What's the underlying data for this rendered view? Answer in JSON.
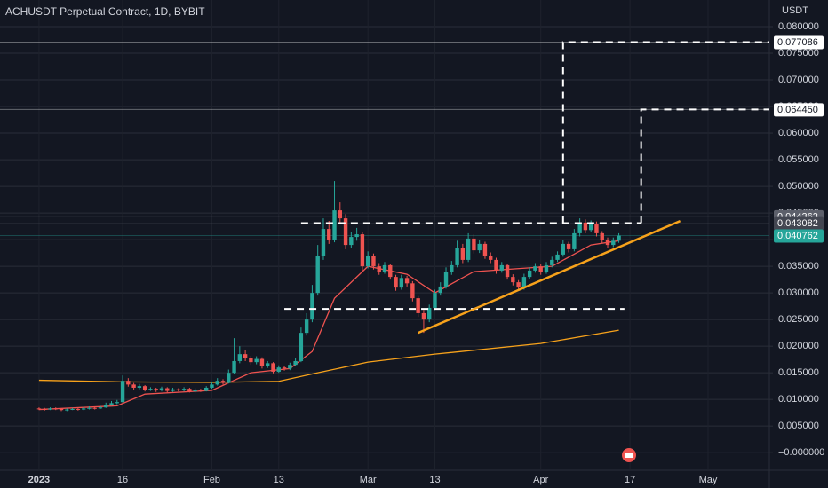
{
  "chart_data": {
    "type": "candlestick",
    "title": "ACHUSDT Perpetual Contract, 1D, BYBIT",
    "y_axis_label": "USDT",
    "up_color": "#26a69a",
    "down_color": "#ef5350",
    "grid": true,
    "x": [
      "2023-01-01",
      "2023-01-02",
      "2023-01-03",
      "2023-01-04",
      "2023-01-05",
      "2023-01-06",
      "2023-01-07",
      "2023-01-08",
      "2023-01-09",
      "2023-01-10",
      "2023-01-11",
      "2023-01-12",
      "2023-01-13",
      "2023-01-14",
      "2023-01-15",
      "2023-01-16",
      "2023-01-17",
      "2023-01-18",
      "2023-01-19",
      "2023-01-20",
      "2023-01-21",
      "2023-01-22",
      "2023-01-23",
      "2023-01-24",
      "2023-01-25",
      "2023-01-26",
      "2023-01-27",
      "2023-01-28",
      "2023-01-29",
      "2023-01-30",
      "2023-01-31",
      "2023-02-01",
      "2023-02-02",
      "2023-02-03",
      "2023-02-04",
      "2023-02-05",
      "2023-02-06",
      "2023-02-07",
      "2023-02-08",
      "2023-02-09",
      "2023-02-10",
      "2023-02-11",
      "2023-02-12",
      "2023-02-13",
      "2023-02-14",
      "2023-02-15",
      "2023-02-16",
      "2023-02-17",
      "2023-02-18",
      "2023-02-19",
      "2023-02-20",
      "2023-02-21",
      "2023-02-22",
      "2023-02-23",
      "2023-02-24",
      "2023-02-25",
      "2023-02-26",
      "2023-02-27",
      "2023-02-28",
      "2023-03-01",
      "2023-03-02",
      "2023-03-03",
      "2023-03-04",
      "2023-03-05",
      "2023-03-06",
      "2023-03-07",
      "2023-03-08",
      "2023-03-09",
      "2023-03-10",
      "2023-03-11",
      "2023-03-12",
      "2023-03-13",
      "2023-03-14",
      "2023-03-15",
      "2023-03-16",
      "2023-03-17",
      "2023-03-18",
      "2023-03-19",
      "2023-03-20",
      "2023-03-21",
      "2023-03-22",
      "2023-03-23",
      "2023-03-24",
      "2023-03-25",
      "2023-03-26",
      "2023-03-27",
      "2023-03-28",
      "2023-03-29",
      "2023-03-30",
      "2023-03-31",
      "2023-04-01",
      "2023-04-02",
      "2023-04-03",
      "2023-04-04",
      "2023-04-05",
      "2023-04-06",
      "2023-04-07",
      "2023-04-08",
      "2023-04-09",
      "2023-04-10",
      "2023-04-11",
      "2023-04-12",
      "2023-04-13",
      "2023-04-14",
      "2023-04-15"
    ],
    "open": [
      0.0083,
      0.0082,
      0.0081,
      0.0083,
      0.0082,
      0.008,
      0.0081,
      0.0082,
      0.0081,
      0.0083,
      0.0084,
      0.0083,
      0.0085,
      0.009,
      0.0093,
      0.0095,
      0.0135,
      0.0128,
      0.0122,
      0.0125,
      0.0118,
      0.012,
      0.0117,
      0.0121,
      0.0116,
      0.0119,
      0.0117,
      0.012,
      0.0115,
      0.0118,
      0.0116,
      0.0122,
      0.0128,
      0.0135,
      0.0131,
      0.015,
      0.0172,
      0.0185,
      0.0178,
      0.017,
      0.0176,
      0.0162,
      0.0168,
      0.0152,
      0.016,
      0.0158,
      0.0165,
      0.0172,
      0.0225,
      0.025,
      0.03,
      0.037,
      0.042,
      0.04,
      0.0455,
      0.044,
      0.039,
      0.0405,
      0.041,
      0.035,
      0.037,
      0.035,
      0.034,
      0.0352,
      0.033,
      0.031,
      0.0328,
      0.0318,
      0.029,
      0.0262,
      0.025,
      0.0272,
      0.03,
      0.0312,
      0.034,
      0.0352,
      0.0385,
      0.0362,
      0.0402,
      0.038,
      0.0392,
      0.037,
      0.0362,
      0.0342,
      0.0352,
      0.033,
      0.032,
      0.031,
      0.033,
      0.0342,
      0.035,
      0.034,
      0.0352,
      0.0362,
      0.0372,
      0.0392,
      0.0382,
      0.0412,
      0.0432,
      0.0418,
      0.043,
      0.0412,
      0.04,
      0.039,
      0.0398
    ],
    "high": [
      0.0085,
      0.0084,
      0.0085,
      0.0085,
      0.0083,
      0.0083,
      0.0084,
      0.0084,
      0.0086,
      0.0087,
      0.0087,
      0.0088,
      0.0094,
      0.0097,
      0.0099,
      0.0145,
      0.014,
      0.0131,
      0.0129,
      0.0127,
      0.0123,
      0.0122,
      0.0124,
      0.0123,
      0.0122,
      0.0121,
      0.0123,
      0.0122,
      0.0121,
      0.012,
      0.0125,
      0.0132,
      0.014,
      0.0138,
      0.0156,
      0.0215,
      0.02,
      0.0192,
      0.0182,
      0.0181,
      0.0179,
      0.0172,
      0.017,
      0.0164,
      0.0163,
      0.0169,
      0.0178,
      0.0235,
      0.0262,
      0.0315,
      0.039,
      0.044,
      0.0435,
      0.051,
      0.047,
      0.0448,
      0.0415,
      0.0422,
      0.0415,
      0.0378,
      0.0374,
      0.0356,
      0.0358,
      0.0355,
      0.0334,
      0.0334,
      0.0332,
      0.0322,
      0.0294,
      0.0268,
      0.0278,
      0.0306,
      0.032,
      0.0348,
      0.036,
      0.0398,
      0.0392,
      0.0412,
      0.041,
      0.04,
      0.0396,
      0.0376,
      0.0366,
      0.0358,
      0.0355,
      0.0335,
      0.0324,
      0.0336,
      0.0348,
      0.0356,
      0.0354,
      0.0358,
      0.0368,
      0.0378,
      0.04,
      0.0396,
      0.042,
      0.044,
      0.0438,
      0.0436,
      0.0434,
      0.0416,
      0.0404,
      0.0404,
      0.0412
    ],
    "low": [
      0.008,
      0.0079,
      0.008,
      0.008,
      0.0078,
      0.0078,
      0.008,
      0.0079,
      0.008,
      0.0081,
      0.0081,
      0.0082,
      0.0084,
      0.0088,
      0.0091,
      0.0094,
      0.0124,
      0.0118,
      0.0119,
      0.0115,
      0.0116,
      0.0114,
      0.0115,
      0.0113,
      0.0114,
      0.0115,
      0.0115,
      0.0113,
      0.0113,
      0.0114,
      0.0115,
      0.012,
      0.0126,
      0.0128,
      0.013,
      0.0148,
      0.0168,
      0.0172,
      0.0165,
      0.0166,
      0.0158,
      0.0159,
      0.0149,
      0.015,
      0.0154,
      0.0155,
      0.0162,
      0.017,
      0.022,
      0.0245,
      0.0295,
      0.0362,
      0.0392,
      0.0395,
      0.043,
      0.0382,
      0.0384,
      0.0398,
      0.0342,
      0.0346,
      0.0344,
      0.0334,
      0.0336,
      0.0325,
      0.0304,
      0.0306,
      0.0312,
      0.0284,
      0.0255,
      0.0225,
      0.0245,
      0.0268,
      0.0295,
      0.0308,
      0.0334,
      0.0348,
      0.0356,
      0.0358,
      0.0374,
      0.0375,
      0.0364,
      0.0356,
      0.0336,
      0.0338,
      0.0325,
      0.0314,
      0.0304,
      0.0306,
      0.0326,
      0.0338,
      0.0334,
      0.0336,
      0.0348,
      0.0358,
      0.0368,
      0.0376,
      0.0378,
      0.0406,
      0.0412,
      0.0414,
      0.0406,
      0.0394,
      0.0384,
      0.0386,
      0.0394
    ],
    "close": [
      0.0082,
      0.0081,
      0.0083,
      0.0082,
      0.008,
      0.0081,
      0.0082,
      0.0081,
      0.0083,
      0.0084,
      0.0083,
      0.0085,
      0.009,
      0.0093,
      0.0095,
      0.0135,
      0.0128,
      0.0122,
      0.0125,
      0.0118,
      0.012,
      0.0117,
      0.0121,
      0.0116,
      0.0119,
      0.0117,
      0.012,
      0.0115,
      0.0118,
      0.0116,
      0.0122,
      0.0128,
      0.0135,
      0.0131,
      0.015,
      0.0172,
      0.0185,
      0.0178,
      0.017,
      0.0176,
      0.0162,
      0.0168,
      0.0152,
      0.016,
      0.0158,
      0.0165,
      0.0172,
      0.0225,
      0.025,
      0.03,
      0.037,
      0.042,
      0.04,
      0.0455,
      0.044,
      0.039,
      0.0405,
      0.041,
      0.035,
      0.037,
      0.035,
      0.034,
      0.0352,
      0.033,
      0.031,
      0.0328,
      0.0318,
      0.029,
      0.0262,
      0.025,
      0.0272,
      0.03,
      0.0312,
      0.034,
      0.0352,
      0.0385,
      0.0362,
      0.0402,
      0.038,
      0.0392,
      0.037,
      0.0362,
      0.0342,
      0.0352,
      0.033,
      0.032,
      0.031,
      0.033,
      0.0342,
      0.035,
      0.034,
      0.0352,
      0.0362,
      0.0372,
      0.0392,
      0.0382,
      0.0412,
      0.0432,
      0.0418,
      0.043,
      0.0412,
      0.04,
      0.039,
      0.0398,
      0.040762
    ],
    "indicators": [
      {
        "color": "#f7a21b",
        "x": [
          "2023-01-01",
          "2023-01-16",
          "2023-02-01",
          "2023-02-13",
          "2023-02-20",
          "2023-03-01",
          "2023-03-13",
          "2023-04-01",
          "2023-04-15"
        ],
        "values": [
          0.0136,
          0.0133,
          0.0132,
          0.0134,
          0.015,
          0.017,
          0.0185,
          0.0205,
          0.023
        ]
      },
      {
        "color": "#ef5350",
        "x": [
          "2023-01-01",
          "2023-01-15",
          "2023-01-20",
          "2023-02-01",
          "2023-02-08",
          "2023-02-15",
          "2023-02-19",
          "2023-02-23",
          "2023-03-01",
          "2023-03-08",
          "2023-03-13",
          "2023-03-20",
          "2023-03-27",
          "2023-04-03",
          "2023-04-10",
          "2023-04-15"
        ],
        "values": [
          0.0081,
          0.0088,
          0.011,
          0.0117,
          0.015,
          0.0158,
          0.019,
          0.029,
          0.035,
          0.0335,
          0.03,
          0.034,
          0.0345,
          0.035,
          0.039,
          0.0398
        ]
      }
    ],
    "drawings": [
      {
        "kind": "dashed",
        "color": "#ffffff",
        "x": [
          "2023-02-17",
          "2023-04-19"
        ],
        "values": [
          0.0431,
          0.0431
        ]
      },
      {
        "kind": "dashed",
        "color": "#ffffff",
        "x": [
          "2023-04-05",
          "2023-04-05",
          "2023-05-12"
        ],
        "values": [
          0.0431,
          0.077086,
          0.077086
        ]
      },
      {
        "kind": "dashed",
        "color": "#ffffff",
        "x": [
          "2023-04-19",
          "2023-04-19",
          "2023-05-12"
        ],
        "values": [
          0.0431,
          0.06445,
          0.06445
        ]
      },
      {
        "kind": "dashed",
        "color": "#ffffff",
        "x": [
          "2023-02-14",
          "2023-04-16"
        ],
        "values": [
          0.027,
          0.027
        ]
      },
      {
        "kind": "solid",
        "color": "#f7a21b",
        "x": [
          "2023-03-10",
          "2023-04-26"
        ],
        "values": [
          0.0225,
          0.0435
        ]
      }
    ],
    "price_labels": [
      {
        "value": 0.077086,
        "label": "0.077086",
        "bg": "#ffffff",
        "fg": "#131722"
      },
      {
        "value": 0.06445,
        "label": "0.064450",
        "bg": "#ffffff",
        "fg": "#131722"
      },
      {
        "value": 0.044363,
        "label": "0.044363",
        "bg": "#5d606b",
        "fg": "#ffffff"
      },
      {
        "value": 0.043082,
        "label": "0.043082",
        "bg": "#434651",
        "fg": "#ffffff"
      },
      {
        "value": 0.040762,
        "label": "0.040762",
        "bg": "#26a69a",
        "fg": "#ffffff"
      }
    ],
    "xlim": [
      "2022-12-25",
      "2023-05-12"
    ],
    "ylim": [
      -0.0033,
      0.085
    ],
    "yticks": [
      {
        "value": 0.08,
        "label": "0.080000"
      },
      {
        "value": 0.075,
        "label": "0.075000"
      },
      {
        "value": 0.07,
        "label": "0.070000"
      },
      {
        "value": 0.065,
        "label": "0.065000"
      },
      {
        "value": 0.06,
        "label": "0.060000"
      },
      {
        "value": 0.055,
        "label": "0.055000"
      },
      {
        "value": 0.05,
        "label": "0.050000"
      },
      {
        "value": 0.045,
        "label": "0.045000"
      },
      {
        "value": 0.04,
        "label": "0.040000"
      },
      {
        "value": 0.035,
        "label": "0.035000"
      },
      {
        "value": 0.03,
        "label": "0.030000"
      },
      {
        "value": 0.025,
        "label": "0.025000"
      },
      {
        "value": 0.02,
        "label": "0.020000"
      },
      {
        "value": 0.015,
        "label": "0.015000"
      },
      {
        "value": 0.01,
        "label": "0.010000"
      },
      {
        "value": 0.005,
        "label": "0.005000"
      },
      {
        "value": 0,
        "label": "−0.000000"
      }
    ],
    "xticks": [
      {
        "value": "2023-01-01",
        "label": "2023"
      },
      {
        "value": "2023-01-16",
        "label": "16"
      },
      {
        "value": "2023-02-01",
        "label": "Feb"
      },
      {
        "value": "2023-02-13",
        "label": "13"
      },
      {
        "value": "2023-03-01",
        "label": "Mar"
      },
      {
        "value": "2023-03-13",
        "label": "13"
      },
      {
        "value": "2023-04-01",
        "label": "Apr"
      },
      {
        "value": "2023-04-17",
        "label": "17"
      },
      {
        "value": "2023-05-01",
        "label": "May"
      }
    ]
  }
}
